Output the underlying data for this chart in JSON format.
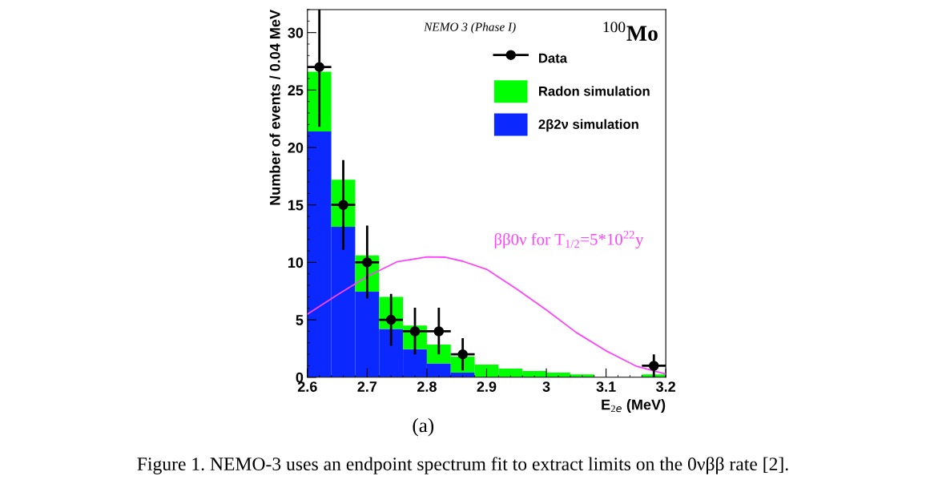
{
  "chart_data": {
    "type": "bar",
    "xlabel": "E$_{2e}$ (MeV)",
    "ylabel": "Number of events / 0.04 MeV",
    "x": [
      2.62,
      2.66,
      2.7,
      2.74,
      2.78,
      2.82,
      2.86,
      2.9,
      2.94,
      2.98,
      3.02,
      3.06,
      3.1,
      3.14,
      3.18
    ],
    "stacked": true,
    "series": [
      {
        "name": "2β2ν simulation",
        "color": "#0a28ff",
        "values": [
          21.4,
          13.1,
          7.45,
          4.2,
          2.45,
          1.2,
          0.4,
          null,
          null,
          0,
          0,
          0,
          0,
          0,
          0
        ]
      },
      {
        "name": "Radon simulation",
        "color": "#00ff00",
        "values": [
          5.2,
          4.1,
          3.15,
          2.8,
          2.05,
          1.65,
          1.4,
          1.1,
          0.75,
          0.55,
          0.4,
          0.25,
          null,
          null,
          0.25
        ]
      },
      {
        "name": "Data",
        "type": "scatter",
        "color": "#000000",
        "marker": "circle",
        "x": [
          2.62,
          2.66,
          2.7,
          2.74,
          2.78,
          2.82,
          2.86,
          3.18
        ],
        "values": [
          27,
          15,
          10,
          5,
          4,
          4,
          2,
          1
        ],
        "errors": [
          [
            21.8,
            32
          ],
          [
            11.1,
            18.9
          ],
          [
            6.85,
            13.2
          ],
          [
            2.75,
            7.25
          ],
          [
            2.0,
            6.05
          ],
          [
            2.0,
            6.05
          ],
          [
            0.6,
            3.4
          ],
          [
            0,
            2.0
          ]
        ],
        "xerrors": [
          0.02,
          0.02,
          0.02,
          0.02,
          0.02,
          0.02,
          0.02,
          0.02
        ]
      },
      {
        "name": "ββ0ν for T$_{1/2}$=5*10$^{22}$y",
        "type": "line",
        "color": "#ff44ff",
        "x": [
          2.6,
          2.65,
          2.7,
          2.75,
          2.8,
          2.83,
          2.86,
          2.9,
          2.95,
          3.0,
          3.05,
          3.1,
          3.15,
          3.2
        ],
        "values": [
          5.5,
          7.17,
          8.77,
          10.05,
          10.47,
          10.45,
          10.1,
          9.4,
          7.7,
          5.86,
          3.9,
          2.3,
          0.98,
          0.28
        ]
      }
    ],
    "xlim": [
      2.6,
      3.2
    ],
    "xticks": [
      2.6,
      2.7,
      2.8,
      2.9,
      3,
      3.1,
      3.2
    ],
    "ylim": [
      0,
      32
    ],
    "yticks": [
      0,
      5,
      10,
      15,
      20,
      25,
      30
    ],
    "grid": false,
    "legend": "top right",
    "annotations": [
      "NEMO 3 (Phase I)",
      "$^{100}$Mo",
      "(a)",
      "Figure 1. NEMO-3 uses an endpoint spectrum fit to extract limits on the 0νββ rate [2]."
    ]
  }
}
